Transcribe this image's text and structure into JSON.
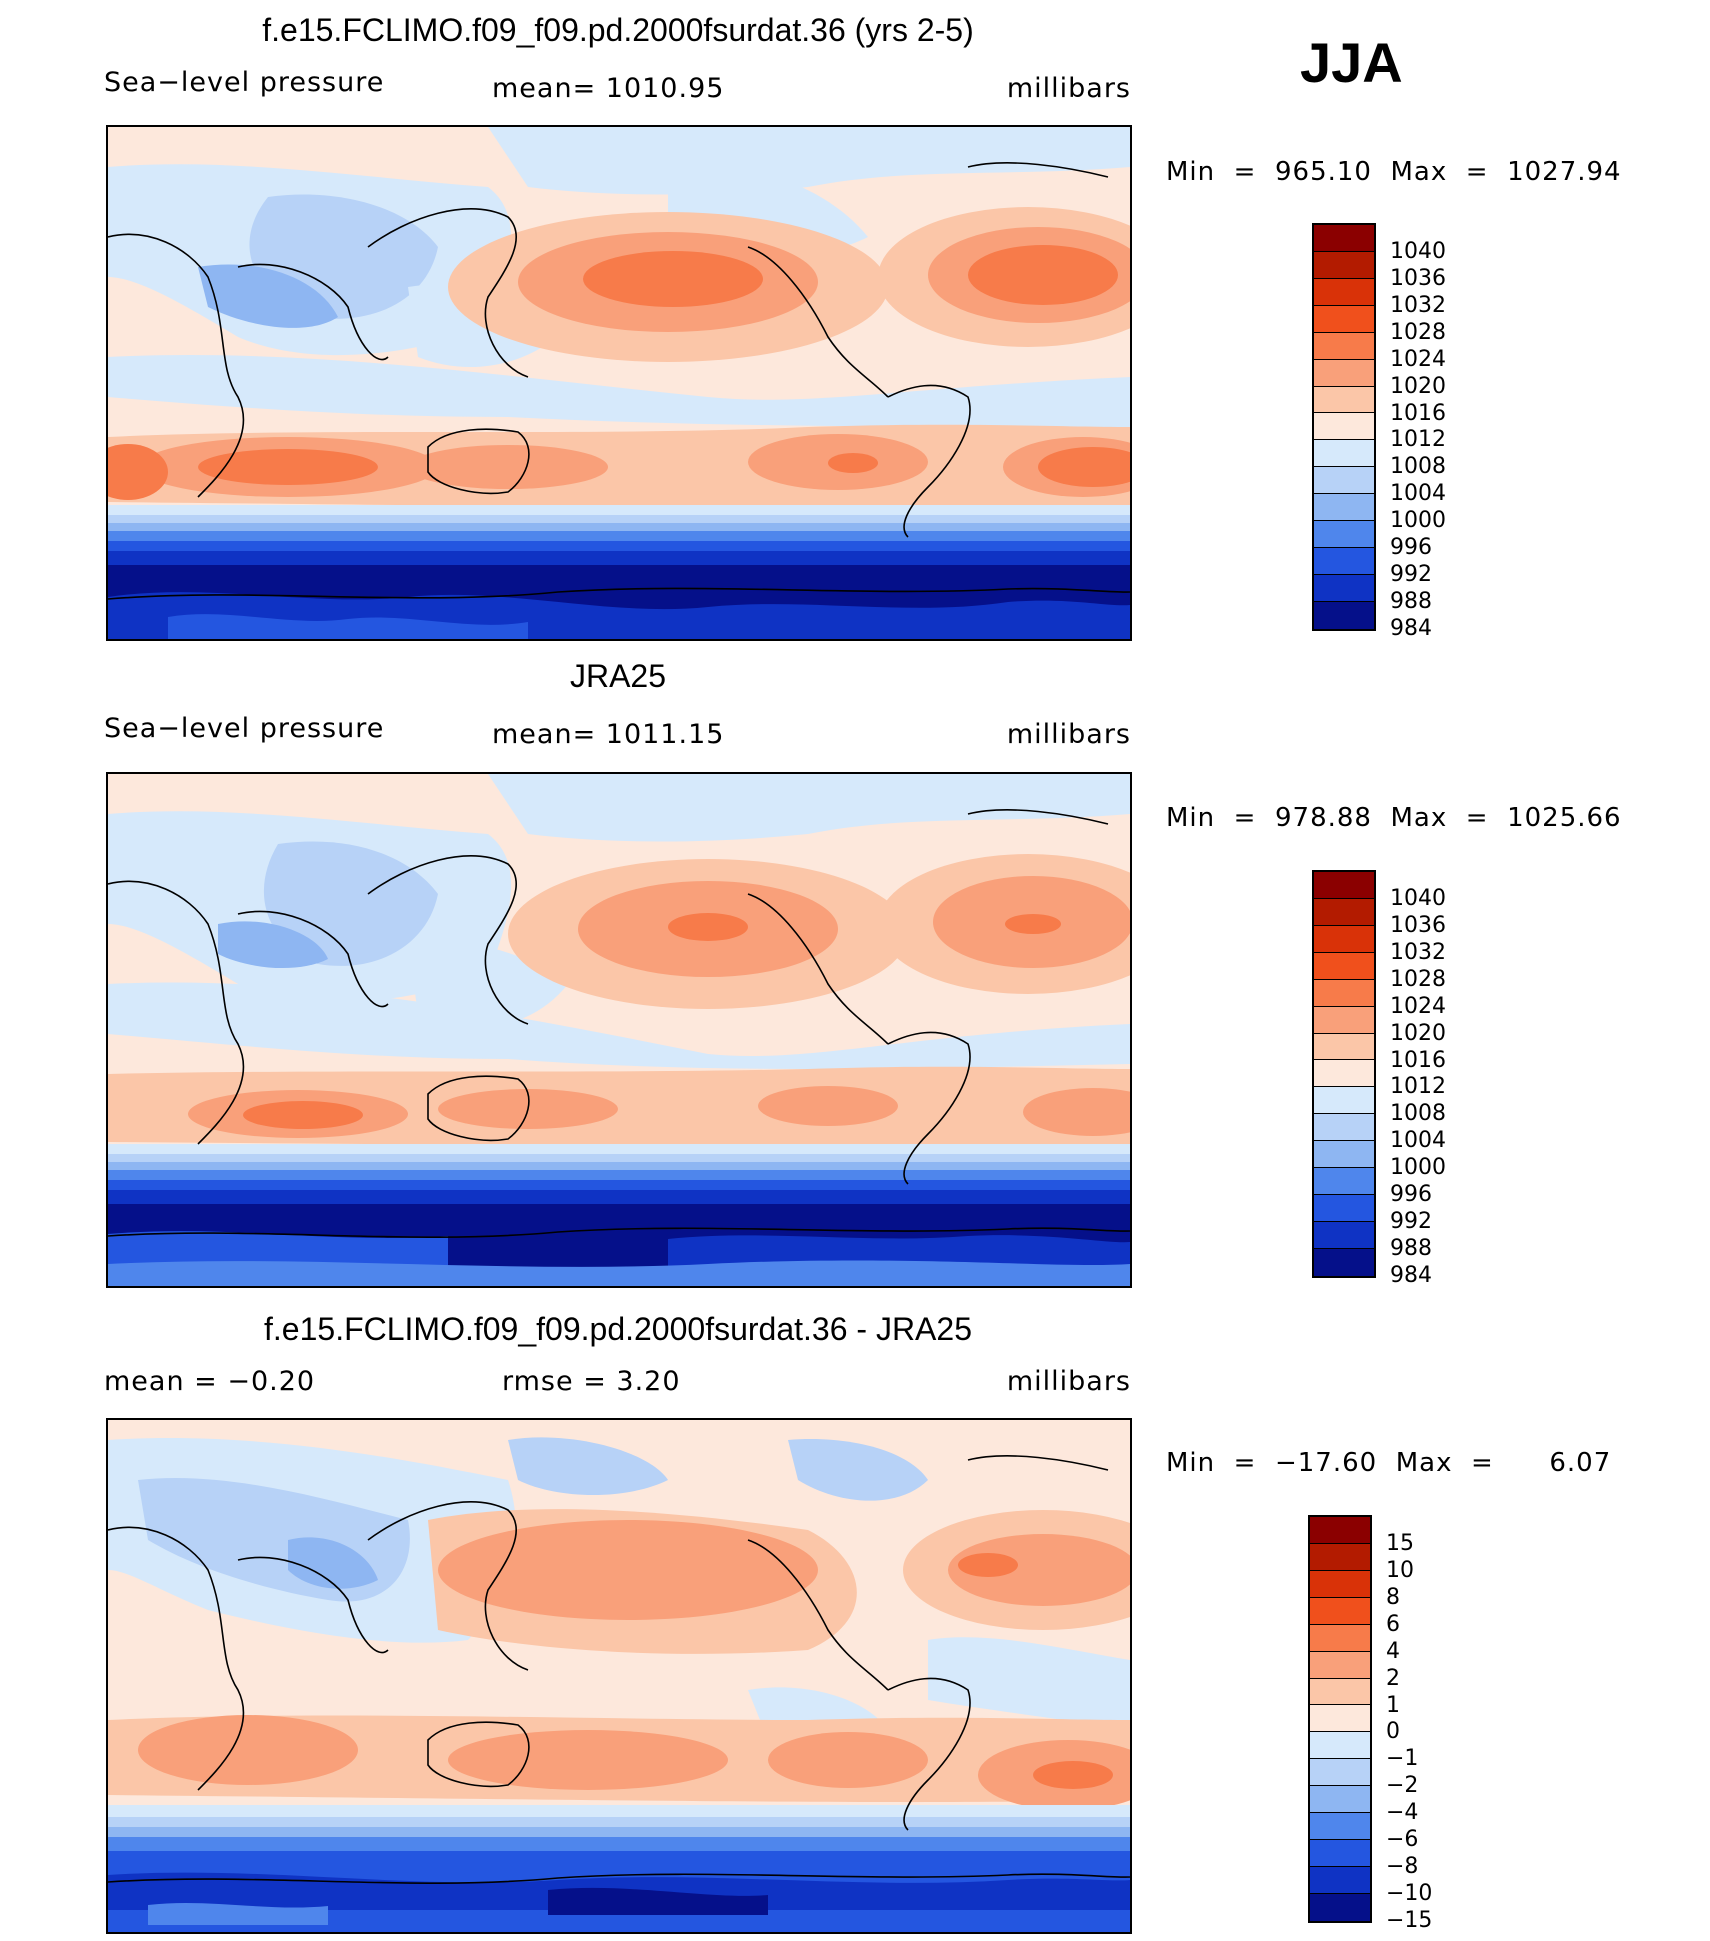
{
  "season": "JJA",
  "units": "millibars",
  "panels": [
    {
      "title": "f.e15.FCLIMO.f09_f09.pd.2000fsurdat.36 (yrs 2-5)",
      "left_label": "Sea−level pressure",
      "center_label": "mean=  1010.95",
      "right_label": "millibars",
      "minmax": "Min  =  965.10  Max  =  1027.94",
      "colorbar": {
        "labels": [
          "1040",
          "1036",
          "1032",
          "1028",
          "1024",
          "1020",
          "1016",
          "1012",
          "1008",
          "1004",
          "1000",
          "996",
          "992",
          "988",
          "984"
        ],
        "colors": [
          "#8b0000",
          "#b31b00",
          "#d93208",
          "#f0501c",
          "#f77b4a",
          "#f9a07a",
          "#fbc6a8",
          "#fde8dc",
          "#d6e9fb",
          "#b7d2f7",
          "#8eb6f2",
          "#4f86ec",
          "#2456e0",
          "#0f33c4",
          "#05108a"
        ]
      }
    },
    {
      "title": "JRA25",
      "left_label": "Sea−level pressure",
      "center_label": "mean=  1011.15",
      "right_label": "millibars",
      "minmax": "Min  =  978.88  Max  =  1025.66",
      "colorbar": {
        "labels": [
          "1040",
          "1036",
          "1032",
          "1028",
          "1024",
          "1020",
          "1016",
          "1012",
          "1008",
          "1004",
          "1000",
          "996",
          "992",
          "988",
          "984"
        ],
        "colors": [
          "#8b0000",
          "#b31b00",
          "#d93208",
          "#f0501c",
          "#f77b4a",
          "#f9a07a",
          "#fbc6a8",
          "#fde8dc",
          "#d6e9fb",
          "#b7d2f7",
          "#8eb6f2",
          "#4f86ec",
          "#2456e0",
          "#0f33c4",
          "#05108a"
        ]
      }
    },
    {
      "title": "f.e15.FCLIMO.f09_f09.pd.2000fsurdat.36 - JRA25",
      "left_label": "mean  =    −0.20",
      "center_label": "rmse  =     3.20",
      "right_label": "millibars",
      "minmax": "Min  =  −17.60  Max  =      6.07",
      "colorbar": {
        "labels": [
          "15",
          "10",
          "8",
          "6",
          "4",
          "2",
          "1",
          "0",
          "−1",
          "−2",
          "−4",
          "−6",
          "−8",
          "−10",
          "−15"
        ],
        "colors": [
          "#8b0000",
          "#b31b00",
          "#d93208",
          "#f0501c",
          "#f77b4a",
          "#f9a07a",
          "#fbc6a8",
          "#fde8dc",
          "#d6e9fb",
          "#b7d2f7",
          "#8eb6f2",
          "#4f86ec",
          "#2456e0",
          "#0f33c4",
          "#05108a"
        ]
      }
    }
  ]
}
